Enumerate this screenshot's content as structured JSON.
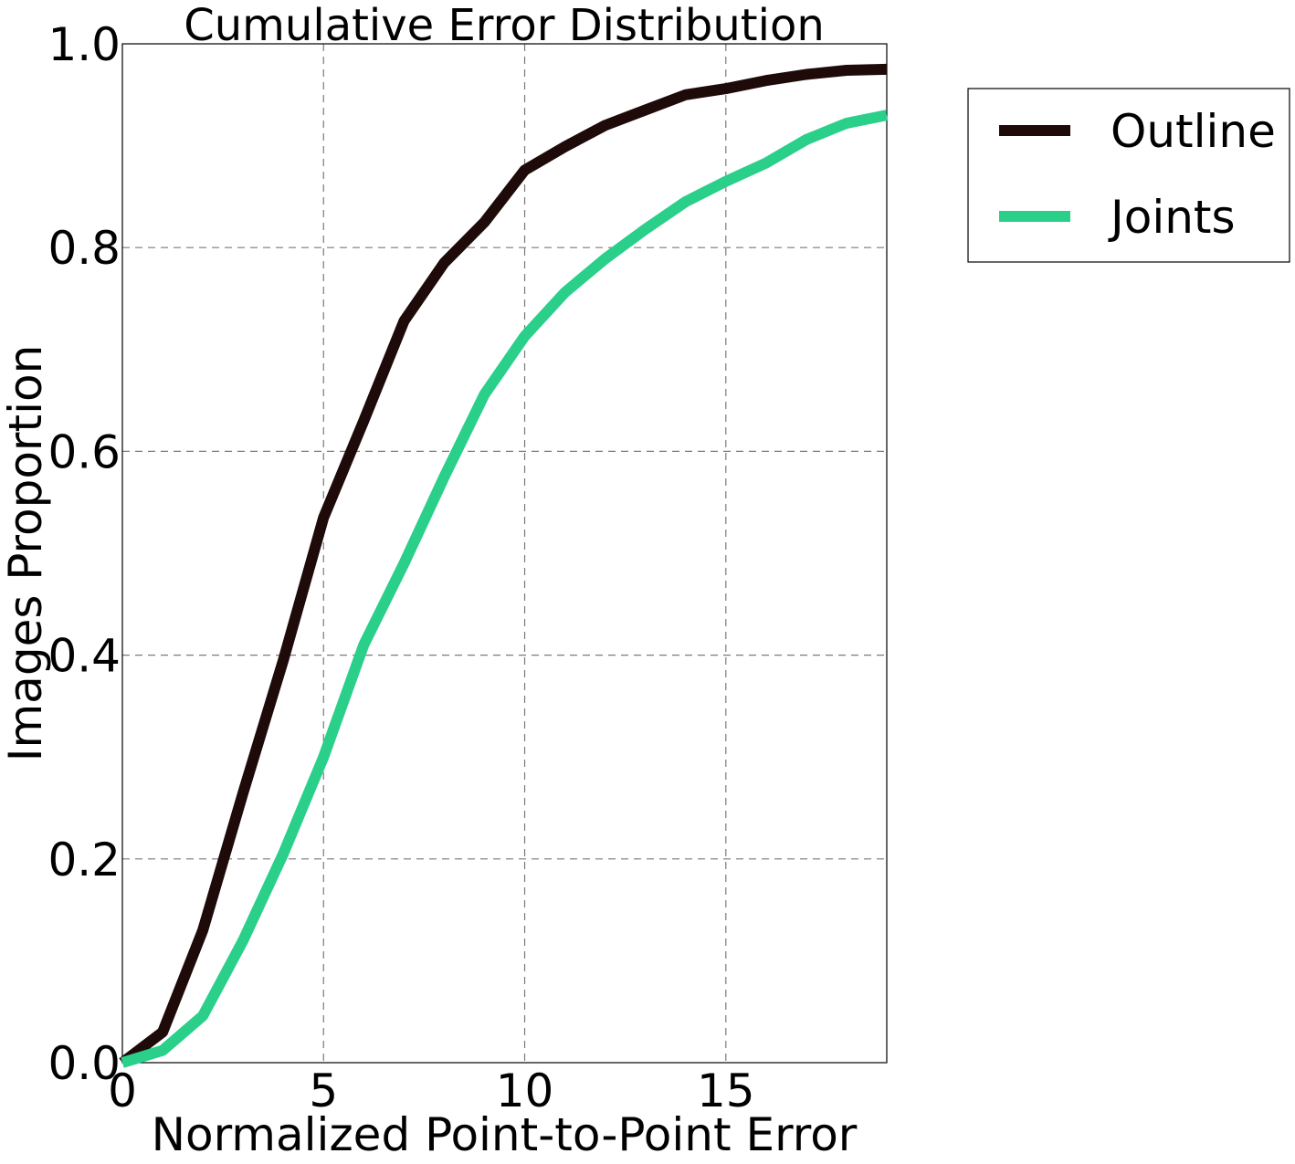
{
  "chart_data": {
    "type": "line",
    "title": "Cumulative Error Distribution",
    "xlabel": "Normalized Point-to-Point Error",
    "ylabel": "Images Proportion",
    "xlim": [
      0,
      19
    ],
    "ylim": [
      0.0,
      1.0
    ],
    "x_ticks": [
      "0",
      "5",
      "10",
      "15"
    ],
    "x_tick_values": [
      0,
      5,
      10,
      15
    ],
    "y_ticks": [
      "0.0",
      "0.2",
      "0.4",
      "0.6",
      "0.8",
      "1.0"
    ],
    "y_tick_values": [
      0.0,
      0.2,
      0.4,
      0.6,
      0.8,
      1.0
    ],
    "grid": true,
    "legend_position": "outside-right-top",
    "x": [
      0,
      1,
      2,
      3,
      4,
      5,
      6,
      7,
      8,
      9,
      10,
      11,
      12,
      13,
      14,
      15,
      16,
      17,
      18,
      19
    ],
    "series": [
      {
        "name": "Outline",
        "color": "#1f0a0a",
        "values": [
          0.0,
          0.03,
          0.13,
          0.265,
          0.395,
          0.535,
          0.63,
          0.728,
          0.785,
          0.825,
          0.876,
          0.899,
          0.92,
          0.935,
          0.95,
          0.956,
          0.964,
          0.97,
          0.974,
          0.975
        ]
      },
      {
        "name": "Joints",
        "color": "#2acf8a",
        "values": [
          0.0,
          0.012,
          0.046,
          0.12,
          0.205,
          0.3,
          0.41,
          0.49,
          0.575,
          0.656,
          0.713,
          0.756,
          0.789,
          0.818,
          0.845,
          0.865,
          0.883,
          0.906,
          0.922,
          0.93
        ]
      }
    ]
  }
}
